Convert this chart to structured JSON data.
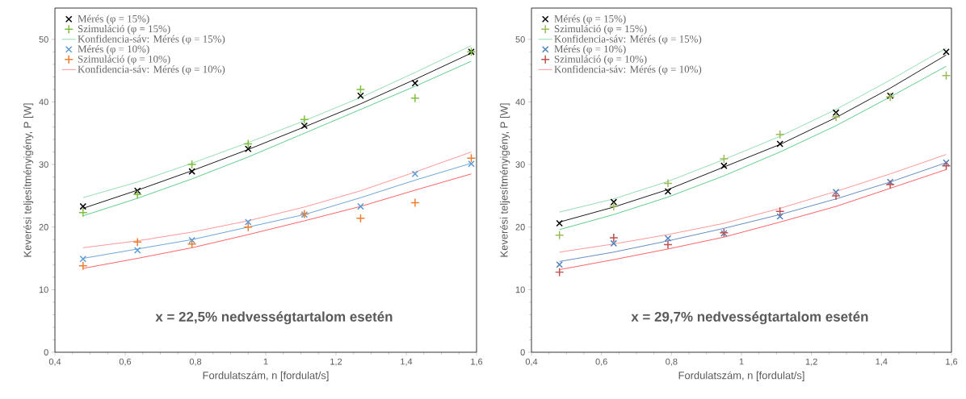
{
  "chart_data": [
    {
      "type": "scatter",
      "xlabel": "Fordulatszám, n [fordulat/s]",
      "ylabel": "Keverési teljesítményigény, P [W]",
      "annotations": [
        "x = 22,5% nedvességtartalom esetén"
      ],
      "legend": "top left",
      "grid": false,
      "xlim": [
        0.4,
        1.6
      ],
      "ylim": [
        0,
        55
      ],
      "xticks": [
        {
          "value": 0.4,
          "label": "0,4"
        },
        {
          "value": 0.6,
          "label": "0,6"
        },
        {
          "value": 0.8,
          "label": "0,8"
        },
        1,
        {
          "value": 1.2,
          "label": "1,2"
        },
        {
          "value": 1.4,
          "label": "1,4"
        },
        {
          "value": 1.6,
          "label": "1,6"
        }
      ],
      "yticks": [
        0,
        10,
        20,
        30,
        40,
        50
      ],
      "x": [
        0.48,
        0.635,
        0.79,
        0.95,
        1.11,
        1.27,
        1.425,
        1.585
      ],
      "series": [
        {
          "name": "Mérés (φ = 15%)",
          "marker": "cross",
          "color": "#000000",
          "values": [
            23.3,
            25.8,
            28.9,
            32.5,
            36.2,
            41.0,
            43.0,
            48.0
          ]
        },
        {
          "name": "Szimuláció (φ = 15%)",
          "marker": "plus",
          "color": "#7fbf3f",
          "values": [
            22.3,
            25.2,
            30.0,
            33.3,
            37.2,
            42.0,
            40.6,
            48.0
          ]
        },
        {
          "name": "Konfidencia-sáv: Mérés (φ = 15%)",
          "type": "line",
          "color": "#4cc77f",
          "values": [
            24.7,
            27.2,
            30.2,
            33.5,
            37.0,
            40.7,
            44.7,
            49.0
          ]
        },
        {
          "name": "Mérés (φ = 10%)",
          "marker": "cross",
          "color": "#5b9bd5",
          "values": [
            14.9,
            16.3,
            17.9,
            20.8,
            22.0,
            23.3,
            28.5,
            30.1
          ]
        },
        {
          "name": "Szimuláció (φ = 10%)",
          "marker": "plus",
          "color": "#ed7d31",
          "values": [
            13.8,
            17.6,
            17.3,
            20.0,
            22.1,
            21.4,
            23.9,
            31.0
          ]
        },
        {
          "name": "Konfidencia-sáv: Mérés (φ = 10%)",
          "type": "line",
          "color": "#ff5050",
          "values": [
            16.7,
            17.8,
            19.2,
            21.0,
            23.2,
            25.8,
            28.8,
            32.0
          ]
        },
        {
          "type": "line",
          "color": "#4cc77f",
          "values": [
            21.8,
            24.6,
            27.7,
            31.2,
            35.0,
            38.8,
            42.5,
            46.5
          ]
        },
        {
          "type": "line",
          "color": "#ff5050",
          "values": [
            13.4,
            15.0,
            16.7,
            18.8,
            21.0,
            23.3,
            25.9,
            28.5
          ]
        },
        {
          "type": "line",
          "color": "#000000",
          "values": [
            23.0,
            25.9,
            29.0,
            32.4,
            36.0,
            39.7,
            43.6,
            47.8
          ]
        },
        {
          "type": "line",
          "color": "#5b9bd5",
          "values": [
            15.0,
            16.5,
            18.0,
            20.0,
            22.0,
            24.7,
            27.5,
            30.2
          ]
        }
      ]
    },
    {
      "type": "scatter",
      "xlabel": "Fordulatszám, n [fordulat/s]",
      "ylabel": "Keverési teljesítményigény, P [W]",
      "annotations": [
        "x = 29,7% nedvességtartalom esetén"
      ],
      "legend": "top left",
      "grid": false,
      "xlim": [
        0.4,
        1.6
      ],
      "ylim": [
        0,
        55
      ],
      "xticks": [
        {
          "value": 0.4,
          "label": "0,4"
        },
        {
          "value": 0.6,
          "label": "0,6"
        },
        {
          "value": 0.8,
          "label": "0,8"
        },
        1,
        {
          "value": 1.2,
          "label": "1,2"
        },
        {
          "value": 1.4,
          "label": "1,4"
        },
        {
          "value": 1.6,
          "label": "1,6"
        }
      ],
      "yticks": [
        0,
        10,
        20,
        30,
        40,
        50
      ],
      "x": [
        0.48,
        0.635,
        0.79,
        0.95,
        1.11,
        1.27,
        1.425,
        1.585
      ],
      "series": [
        {
          "name": "Mérés (φ = 15%)",
          "marker": "cross",
          "color": "#000000",
          "values": [
            20.6,
            24.0,
            25.7,
            29.8,
            33.3,
            38.3,
            41.0,
            48.0
          ]
        },
        {
          "name": "Szimuláció (φ = 15%)",
          "marker": "plus",
          "color": "#9bbb59",
          "values": [
            18.7,
            23.3,
            27.0,
            30.9,
            34.8,
            37.6,
            40.8,
            44.2
          ]
        },
        {
          "name": "Konfidencia-sáv: Mérés (φ = 15%)",
          "type": "line",
          "color": "#4cc77f",
          "values": [
            22.4,
            24.5,
            27.3,
            30.8,
            34.5,
            38.8,
            43.5,
            48.6
          ]
        },
        {
          "name": "Mérés (φ = 10%)",
          "marker": "cross",
          "color": "#4f81bd",
          "values": [
            14.0,
            17.4,
            18.2,
            19.0,
            21.7,
            25.6,
            27.2,
            30.3
          ]
        },
        {
          "name": "Szimuláció (φ = 10%)",
          "marker": "plus",
          "color": "#c0504d",
          "values": [
            12.8,
            18.3,
            17.2,
            19.1,
            22.5,
            25.0,
            26.8,
            29.8
          ]
        },
        {
          "name": "Konfidencia-sáv: Mérés (φ = 10%)",
          "type": "line",
          "color": "#ff5050",
          "values": [
            16.0,
            17.3,
            18.8,
            20.6,
            23.0,
            25.7,
            28.5,
            31.6
          ]
        },
        {
          "type": "line",
          "color": "#4cc77f",
          "values": [
            19.6,
            22.0,
            24.8,
            28.2,
            32.0,
            36.2,
            40.8,
            45.7
          ]
        },
        {
          "type": "line",
          "color": "#ff5050",
          "values": [
            13.2,
            14.8,
            16.5,
            18.4,
            20.8,
            23.3,
            26.2,
            29.2
          ]
        },
        {
          "type": "line",
          "color": "#000000",
          "values": [
            20.8,
            23.2,
            26.0,
            29.6,
            33.2,
            37.5,
            42.2,
            47.5
          ]
        },
        {
          "type": "line",
          "color": "#4f81bd",
          "values": [
            14.5,
            16.0,
            17.8,
            19.8,
            22.0,
            24.5,
            27.2,
            30.3
          ]
        }
      ]
    }
  ]
}
